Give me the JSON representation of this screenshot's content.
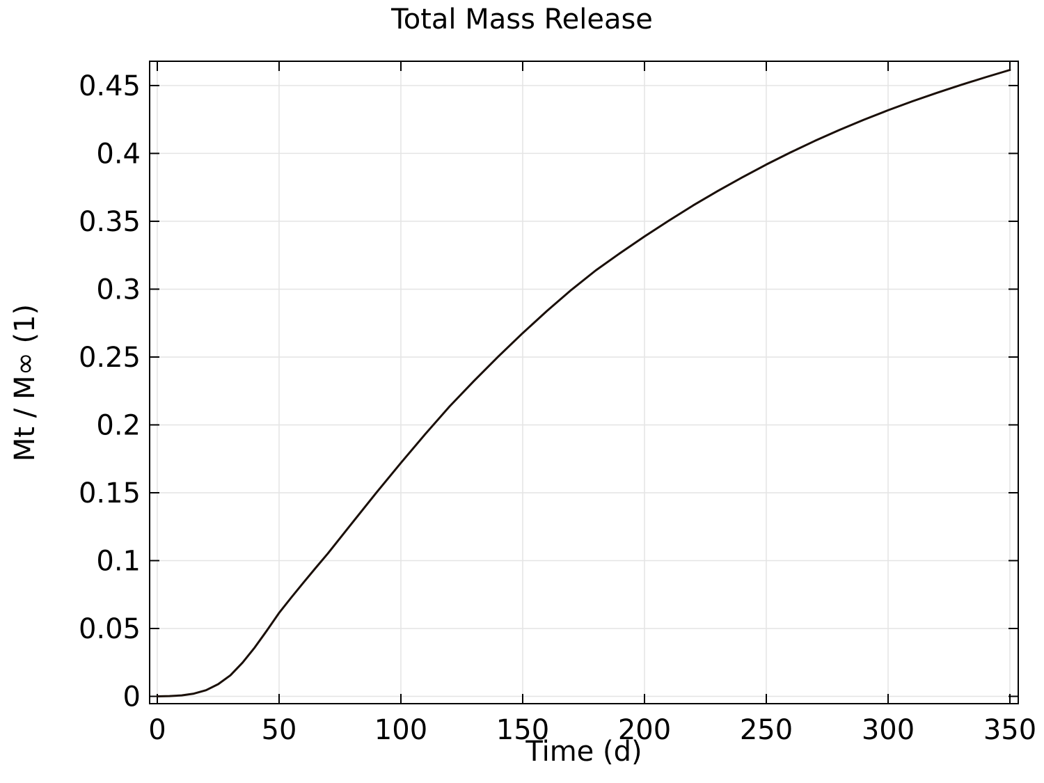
{
  "chart_data": {
    "type": "line",
    "title": "Total Mass Release",
    "xlabel": "Time (d)",
    "ylabel": "Mt / M∞ (1)",
    "xlim": [
      -3.14,
      353.43
    ],
    "ylim": [
      -0.00538,
      0.4679
    ],
    "xticks": [
      0,
      50,
      100,
      150,
      200,
      250,
      300,
      350
    ],
    "xtick_labels": [
      "0",
      "50",
      "100",
      "150",
      "200",
      "250",
      "300",
      "350"
    ],
    "yticks": [
      0,
      0.05,
      0.1,
      0.15,
      0.2,
      0.25,
      0.3,
      0.35,
      0.4,
      0.45
    ],
    "ytick_labels": [
      "0",
      "0.05",
      "0.1",
      "0.15",
      "0.2",
      "0.25",
      "0.3",
      "0.35",
      "0.4",
      "0.45"
    ],
    "grid": true,
    "legend": null,
    "grid_color": "#e4e4e4",
    "axis_color": "#000000",
    "background_color": "#ffffff",
    "tick_length": 14,
    "series": [
      {
        "color": "#1a0f08",
        "width": 3,
        "points": [
          [
            0,
            0.0
          ],
          [
            5,
            0.0002
          ],
          [
            10,
            0.0007
          ],
          [
            15,
            0.002
          ],
          [
            20,
            0.0045
          ],
          [
            25,
            0.009
          ],
          [
            30,
            0.0155
          ],
          [
            35,
            0.0248
          ],
          [
            40,
            0.036
          ],
          [
            45,
            0.0485
          ],
          [
            50,
            0.0615
          ],
          [
            55,
            0.0728
          ],
          [
            60,
            0.0838
          ],
          [
            65,
            0.0946
          ],
          [
            70,
            0.1052
          ],
          [
            80,
            0.1278
          ],
          [
            90,
            0.1502
          ],
          [
            100,
            0.172
          ],
          [
            110,
            0.1932
          ],
          [
            120,
            0.2136
          ],
          [
            130,
            0.2324
          ],
          [
            140,
            0.2504
          ],
          [
            150,
            0.2676
          ],
          [
            160,
            0.284
          ],
          [
            170,
            0.2995
          ],
          [
            180,
            0.3138
          ],
          [
            190,
            0.3266
          ],
          [
            200,
            0.3388
          ],
          [
            210,
            0.3505
          ],
          [
            220,
            0.3617
          ],
          [
            230,
            0.3722
          ],
          [
            240,
            0.3822
          ],
          [
            250,
            0.3918
          ],
          [
            260,
            0.4008
          ],
          [
            270,
            0.4093
          ],
          [
            280,
            0.4173
          ],
          [
            290,
            0.4248
          ],
          [
            300,
            0.4318
          ],
          [
            310,
            0.4384
          ],
          [
            320,
            0.4446
          ],
          [
            330,
            0.4505
          ],
          [
            340,
            0.4561
          ],
          [
            350,
            0.4615
          ]
        ]
      }
    ]
  }
}
